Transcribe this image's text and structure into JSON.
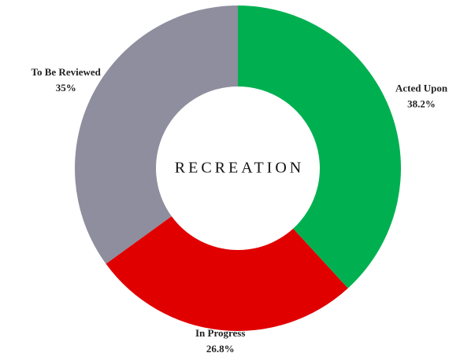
{
  "chart_data": {
    "type": "donut",
    "title": "RECREATION",
    "categories": [
      "Acted Upon",
      "In Progress",
      "To Be Reviewed"
    ],
    "values": [
      38.2,
      26.8,
      35
    ],
    "value_labels": [
      "38.2%",
      "26.8%",
      "35%"
    ],
    "colors": [
      "#00b050",
      "#e00000",
      "#8e8e9e"
    ]
  }
}
